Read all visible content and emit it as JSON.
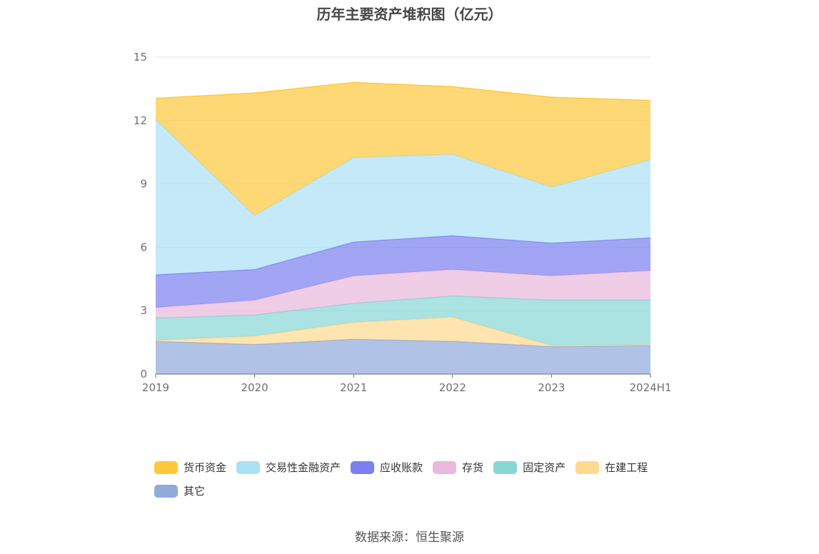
{
  "chart_data": {
    "type": "area",
    "stacked": true,
    "title": "历年主要资产堆积图（亿元）",
    "categories": [
      "2019",
      "2020",
      "2021",
      "2022",
      "2023",
      "2024H1"
    ],
    "ylim": [
      0,
      15
    ],
    "yticks": [
      0,
      3,
      6,
      9,
      12,
      15
    ],
    "grid": true,
    "legend_position": "bottom",
    "series": [
      {
        "name": "其它",
        "color": "#8faadc",
        "values": [
          1.55,
          1.4,
          1.65,
          1.55,
          1.3,
          1.35
        ]
      },
      {
        "name": "在建工程",
        "color": "#ffd98e",
        "values": [
          0.05,
          0.4,
          0.8,
          1.15,
          0.05,
          0.05
        ]
      },
      {
        "name": "固定资产",
        "color": "#86d7d5",
        "values": [
          1.05,
          1.0,
          0.9,
          1.0,
          2.15,
          2.1
        ]
      },
      {
        "name": "存货",
        "color": "#e9b8dc",
        "values": [
          0.5,
          0.7,
          1.3,
          1.25,
          1.15,
          1.4
        ]
      },
      {
        "name": "应收账款",
        "color": "#7b7ff0",
        "values": [
          1.55,
          1.45,
          1.6,
          1.6,
          1.55,
          1.55
        ]
      },
      {
        "name": "交易性金融资产",
        "color": "#abe1f8",
        "values": [
          7.35,
          2.55,
          4.0,
          3.85,
          2.65,
          3.7
        ]
      },
      {
        "name": "货币资金",
        "color": "#ffc83c",
        "values": [
          1.0,
          5.8,
          3.55,
          3.2,
          4.25,
          2.8
        ]
      }
    ]
  },
  "legend_order": [
    "货币资金",
    "交易性金融资产",
    "应收账款",
    "存货",
    "固定资产",
    "在建工程",
    "其它"
  ],
  "source": "数据来源：恒生聚源"
}
